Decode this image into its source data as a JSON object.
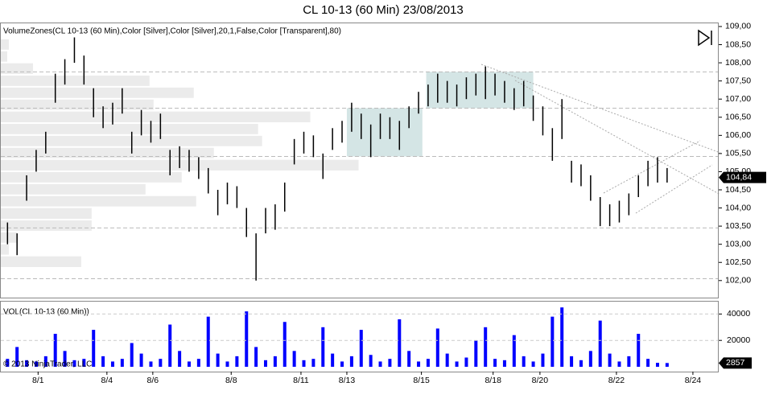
{
  "chart_data": [
    {
      "type": "ohlc",
      "title": "CL 10-13 (60 Min)  23/08/2013",
      "indicator_label": "VolumeZones(CL 10-13 (60 Min),Color [Silver],Color [Silver],20,1,False,Color [Transparent],80)",
      "color": "#000000",
      "high": [
        103.6,
        103.3,
        104.9,
        105.6,
        106.1,
        107.7,
        108.1,
        108.7,
        108.2,
        107.3,
        106.8,
        106.9,
        107.3,
        106.1,
        106.7,
        106.4,
        106.6,
        105.6,
        105.7,
        105.6,
        105.4,
        105.1,
        104.5,
        104.7,
        104.6,
        104.0,
        103.3,
        104.0,
        104.1,
        104.7,
        105.9,
        106.1,
        106.0,
        105.5,
        106.2,
        106.4,
        106.9,
        106.6,
        106.3,
        106.6,
        106.5,
        106.4,
        106.8,
        107.2,
        107.4,
        107.7,
        107.5,
        107.4,
        107.6,
        107.7,
        107.9,
        107.7,
        107.5,
        107.3,
        107.5,
        107.1,
        106.8,
        106.2,
        107.0,
        105.3,
        105.2,
        104.9,
        104.3,
        104.1,
        104.2,
        104.4,
        104.9,
        105.3,
        105.4,
        105.1
      ],
      "low": [
        103.0,
        102.7,
        104.2,
        105.0,
        105.5,
        106.9,
        107.4,
        108.0,
        107.4,
        106.5,
        106.2,
        106.3,
        106.6,
        105.5,
        106.0,
        105.8,
        105.9,
        104.9,
        105.1,
        105.0,
        104.8,
        104.4,
        103.8,
        104.1,
        104.0,
        103.2,
        102.0,
        103.3,
        103.4,
        103.9,
        105.2,
        105.5,
        105.4,
        104.8,
        105.6,
        105.8,
        106.1,
        105.9,
        105.4,
        105.9,
        105.9,
        105.6,
        106.2,
        106.6,
        106.8,
        106.9,
        106.9,
        106.8,
        107.0,
        107.1,
        107.0,
        107.1,
        106.9,
        106.7,
        106.8,
        106.4,
        106.0,
        105.3,
        105.9,
        104.7,
        104.6,
        104.2,
        103.5,
        103.5,
        103.6,
        103.8,
        104.3,
        104.6,
        104.7,
        104.7
      ],
      "last_price": {
        "value": 104.84,
        "label": "104,84"
      },
      "xlim": [
        -0.7,
        74.4
      ],
      "xticks": [
        {
          "value": 3.2,
          "label": "8/1"
        },
        {
          "value": 10.4,
          "label": "8/4"
        },
        {
          "value": 15.2,
          "label": "8/6"
        },
        {
          "value": 23.4,
          "label": "8/8"
        },
        {
          "value": 30.7,
          "label": "8/11"
        },
        {
          "value": 35.5,
          "label": "8/13"
        },
        {
          "value": 43.3,
          "label": "8/15"
        },
        {
          "value": 50.8,
          "label": "8/18"
        },
        {
          "value": 55.7,
          "label": "8/20"
        },
        {
          "value": 63.7,
          "label": "8/22"
        },
        {
          "value": 71.7,
          "label": "8/24"
        }
      ],
      "ylim": [
        101.53,
        109.11
      ],
      "yticks": [
        {
          "value": 102,
          "label": "102,00"
        },
        {
          "value": 102.5,
          "label": "102,50"
        },
        {
          "value": 103,
          "label": "103,00"
        },
        {
          "value": 103.5,
          "label": "103,50"
        },
        {
          "value": 104,
          "label": "104,00"
        },
        {
          "value": 104.5,
          "label": "104,50"
        },
        {
          "value": 105,
          "label": "105,00"
        },
        {
          "value": 105.5,
          "label": "105,50"
        },
        {
          "value": 106,
          "label": "106,00"
        },
        {
          "value": 106.5,
          "label": "106,50"
        },
        {
          "value": 107,
          "label": "107,00"
        },
        {
          "value": 107.5,
          "label": "107,50"
        },
        {
          "value": 108,
          "label": "108,00"
        },
        {
          "value": 108.5,
          "label": "108,50"
        },
        {
          "value": 109,
          "label": "109,00"
        }
      ],
      "zone_color": "#ebebeb",
      "zone_edges": [
        102.02,
        102.35,
        102.69,
        103.02,
        103.35,
        103.68,
        104.02,
        104.35,
        104.68,
        105.01,
        105.35,
        105.68,
        106.01,
        106.34,
        106.68,
        107.01,
        107.34,
        107.67,
        108.01,
        108.34,
        108.67
      ],
      "zone_volumes": [
        0,
        100,
        10,
        20,
        113,
        113,
        243,
        180,
        225,
        445,
        265,
        325,
        320,
        385,
        190,
        240,
        185,
        40,
        8,
        10
      ],
      "zone_xlim": [
        0,
        893
      ],
      "levels": [
        107.75,
        106.75,
        105.42,
        103.45,
        102.05
      ],
      "box_color": "#c9dfdf",
      "boxes": [
        {
          "x0": 35.5,
          "x1": 43.4,
          "low": 105.42,
          "high": 106.75
        },
        {
          "x0": 43.8,
          "x1": 55.0,
          "low": 106.75,
          "high": 107.75
        }
      ]
    },
    {
      "type": "bar",
      "title": "VOL(CL 10-13 (60 Min))",
      "color": "#0000ff",
      "values": [
        6000,
        15000,
        5000,
        4000,
        8000,
        25000,
        12000,
        5000,
        6000,
        28000,
        8000,
        4000,
        6000,
        18000,
        10000,
        4000,
        6000,
        32000,
        12000,
        4000,
        6000,
        38000,
        10000,
        4000,
        8000,
        42000,
        15000,
        5000,
        8000,
        34000,
        12000,
        5000,
        6000,
        30000,
        10000,
        4000,
        8000,
        28000,
        9000,
        4000,
        6000,
        36000,
        12000,
        4000,
        6000,
        29000,
        10000,
        4000,
        7000,
        20000,
        30000,
        6000,
        5000,
        24000,
        8000,
        4000,
        10000,
        38000,
        45000,
        8000,
        5000,
        12000,
        35000,
        10000,
        4000,
        8000,
        25000,
        6000,
        3000,
        2857
      ],
      "ylim": [
        0,
        50000
      ],
      "yticks": [
        20000,
        40000
      ],
      "copyright": "© 2013 NinjaTrader, LLC"
    }
  ]
}
